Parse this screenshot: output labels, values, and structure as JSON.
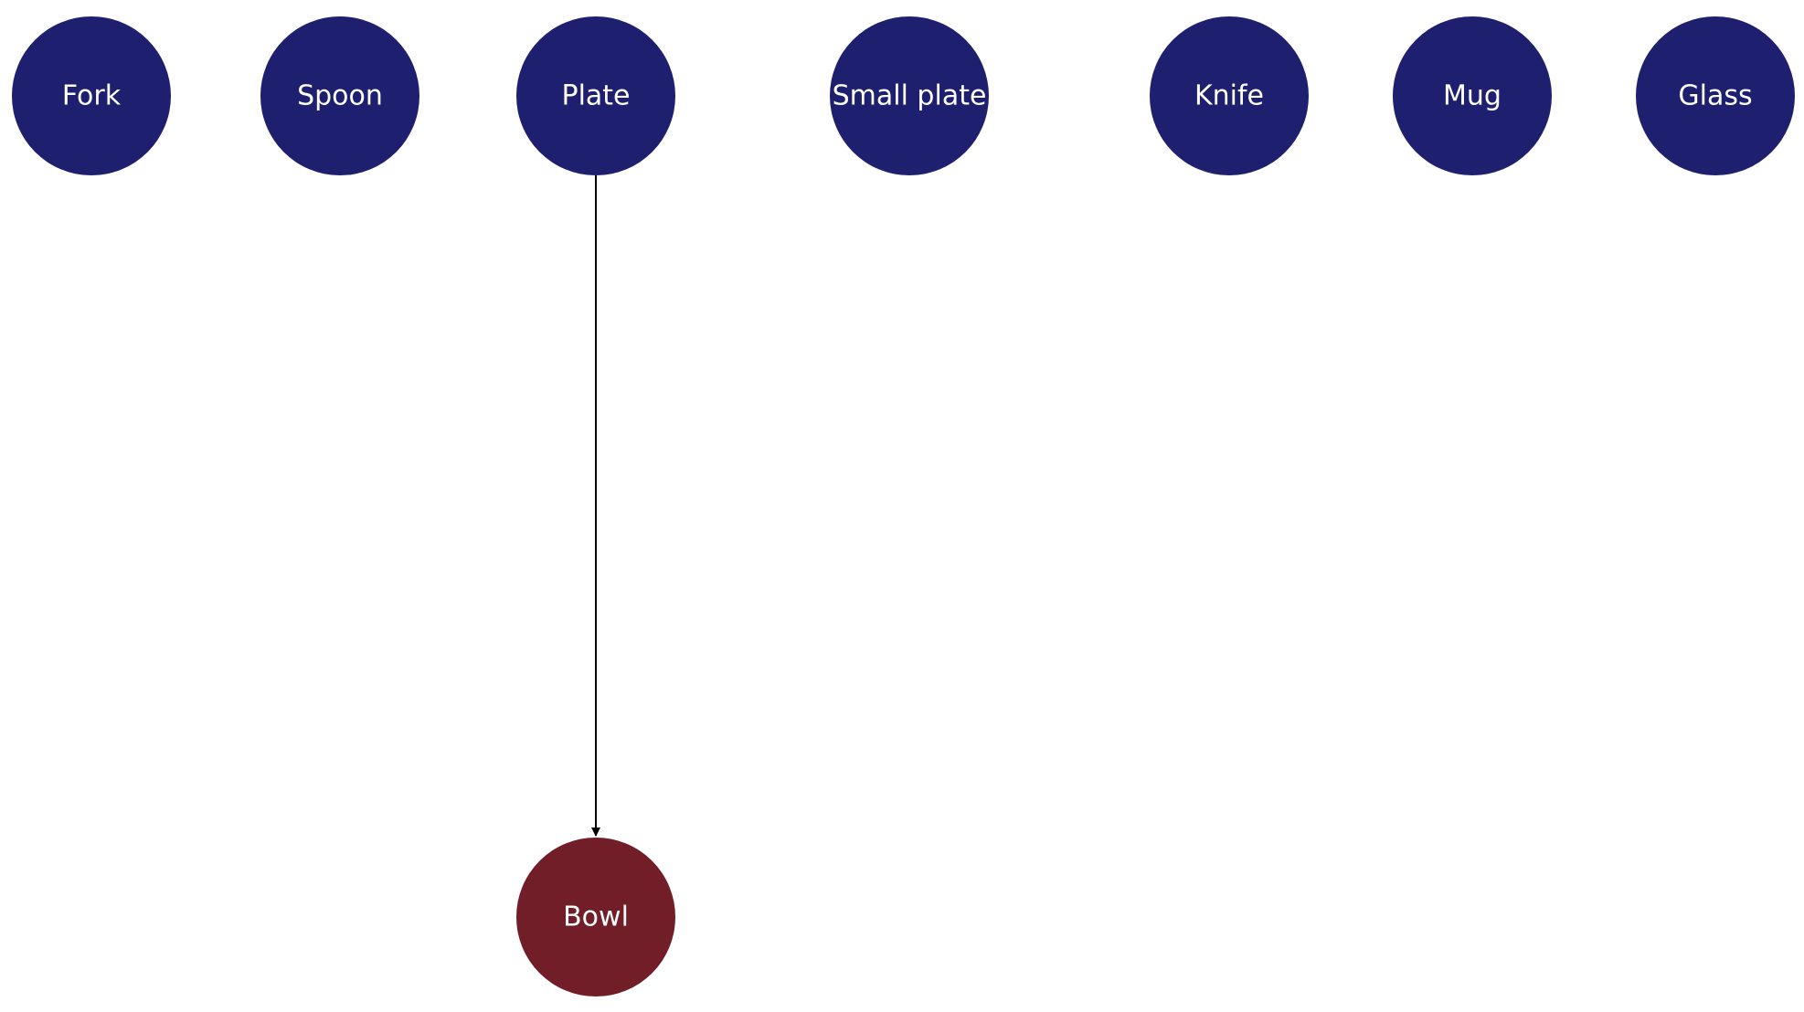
{
  "diagram": {
    "nodes": [
      {
        "id": "fork",
        "label": "Fork",
        "color": "#1e1f6e"
      },
      {
        "id": "spoon",
        "label": "Spoon",
        "color": "#1e1f6e"
      },
      {
        "id": "plate",
        "label": "Plate",
        "color": "#1e1f6e"
      },
      {
        "id": "small-plate",
        "label": "Small plate",
        "color": "#1e1f6e"
      },
      {
        "id": "knife",
        "label": "Knife",
        "color": "#1e1f6e"
      },
      {
        "id": "mug",
        "label": "Mug",
        "color": "#1e1f6e"
      },
      {
        "id": "glass",
        "label": "Glass",
        "color": "#1e1f6e"
      },
      {
        "id": "bowl",
        "label": "Bowl",
        "color": "#711e28"
      }
    ],
    "edges": [
      {
        "from": "plate",
        "to": "bowl"
      }
    ]
  }
}
